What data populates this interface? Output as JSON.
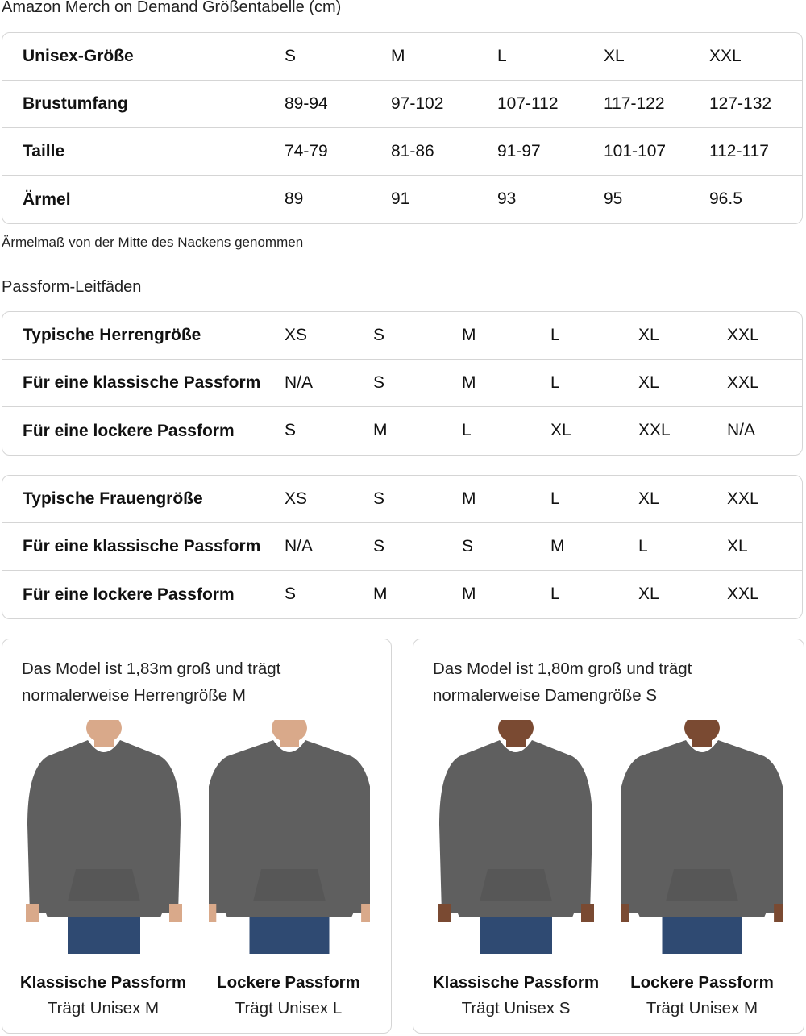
{
  "title": "Amazon Merch on Demand Größentabelle (cm)",
  "size_table": {
    "rows": [
      [
        "Unisex-Größe",
        "S",
        "M",
        "L",
        "XL",
        "XXL"
      ],
      [
        "Brustumfang",
        "89-94",
        "97-102",
        "107-112",
        "117-122",
        "127-132"
      ],
      [
        "Taille",
        "74-79",
        "81-86",
        "91-97",
        "101-107",
        "112-117"
      ],
      [
        "Ärmel",
        "89",
        "91",
        "93",
        "95",
        "96.5"
      ]
    ]
  },
  "note": "Ärmelmaß von der Mitte des Nackens genommen",
  "fit_title": "Passform-Leitfäden",
  "men_table": {
    "rows": [
      [
        "Typische Herrengröße",
        "XS",
        "S",
        "M",
        "L",
        "XL",
        "XXL"
      ],
      [
        "Für eine klassische Passform",
        "N/A",
        "S",
        "M",
        "L",
        "XL",
        "XXL"
      ],
      [
        "Für eine lockere Passform",
        "S",
        "M",
        "L",
        "XL",
        "XXL",
        "N/A"
      ]
    ]
  },
  "women_table": {
    "rows": [
      [
        "Typische Frauengröße",
        "XS",
        "S",
        "M",
        "L",
        "XL",
        "XXL"
      ],
      [
        "Für eine klassische Passform",
        "N/A",
        "S",
        "S",
        "M",
        "L",
        "XL"
      ],
      [
        "Für eine lockere Passform",
        "S",
        "M",
        "M",
        "L",
        "XL",
        "XXL"
      ]
    ]
  },
  "cards": [
    {
      "text1": "Das Model ist 1,83m groß und trägt",
      "text2": "normalerweise Herrengröße M",
      "figures": [
        {
          "title": "Klassische Passform",
          "sub": "Trägt Unisex M"
        },
        {
          "title": "Lockere Passform",
          "sub": "Trägt Unisex L"
        }
      ]
    },
    {
      "text1": "Das Model ist 1,80m groß und trägt",
      "text2": "normalerweise Damengröße S",
      "figures": [
        {
          "title": "Klassische Passform",
          "sub": "Trägt Unisex S"
        },
        {
          "title": "Lockere Passform",
          "sub": "Trägt Unisex M"
        }
      ]
    }
  ],
  "colors": {
    "hoodie": "#5f5f5f",
    "jeans": "#2f4a72",
    "skin_m": "#d9a98a",
    "skin_f": "#7a4a32",
    "border": "#d5d5d5"
  }
}
